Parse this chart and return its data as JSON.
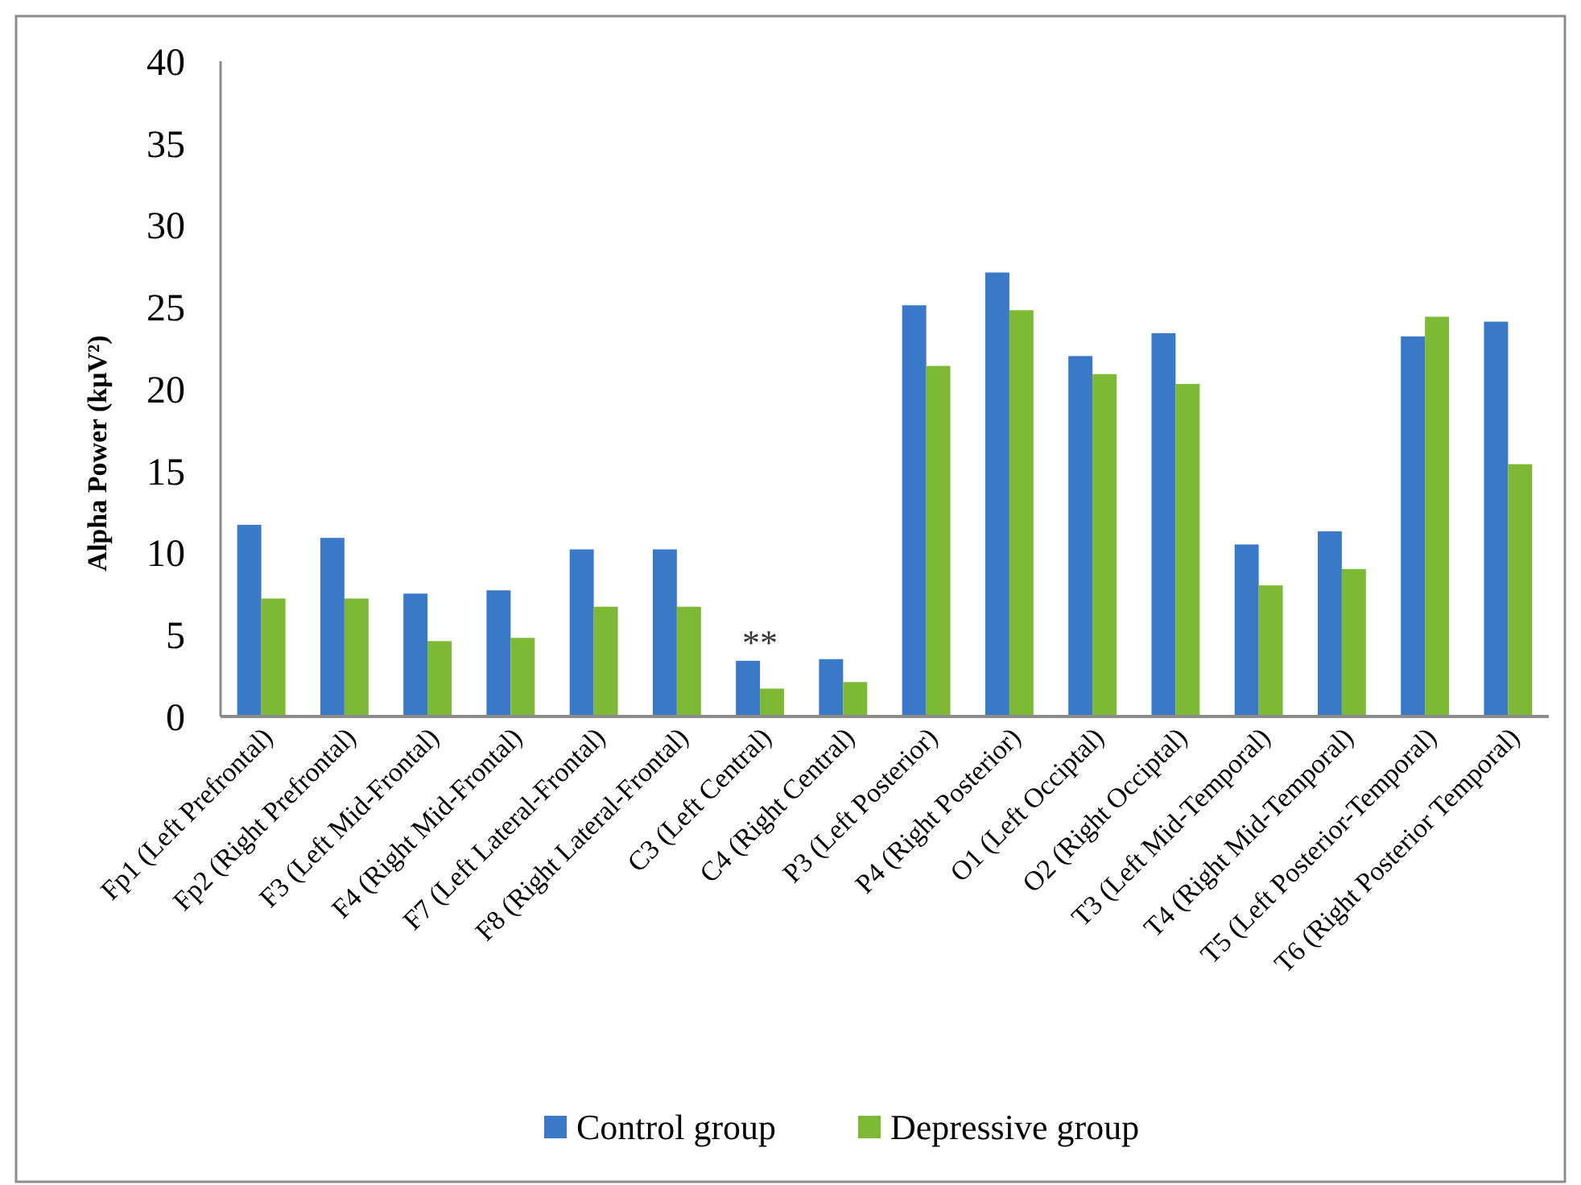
{
  "chart_data": {
    "type": "bar",
    "ylabel": "Alpha Power (kμV²)",
    "categories": [
      "Fp1 (Left Prefrontal)",
      "Fp2 (Right Prefrontal)",
      "F3 (Left Mid-Frontal)",
      "F4 (Right Mid-Frontal)",
      "F7 (Left Lateral-Frontal)",
      "F8 (Right Lateral-Frontal)",
      "C3 (Left Central)",
      "C4 (Right Central)",
      "P3 (Left Posterior)",
      "P4 (Right Posterior)",
      "O1 (Left Occiptal)",
      "O2 (Right Occiptal)",
      "T3 (Left Mid-Temporal)",
      "T4 (Right Mid-Temporal)",
      "T5 (Left Posterior-Temporal)",
      "T6 (Right Posterior Temporal)"
    ],
    "series": [
      {
        "name": "Control group",
        "color": "#3a78c8",
        "values": [
          11.7,
          10.9,
          7.5,
          7.7,
          10.2,
          10.2,
          3.4,
          3.5,
          25.1,
          27.1,
          22.0,
          23.4,
          10.5,
          11.3,
          23.2,
          24.1
        ]
      },
      {
        "name": "Depressive group",
        "color": "#7db935",
        "values": [
          7.2,
          7.2,
          4.6,
          4.8,
          6.7,
          6.7,
          1.7,
          2.1,
          21.4,
          24.8,
          20.9,
          20.3,
          8.0,
          9.0,
          24.4,
          15.4
        ]
      }
    ],
    "ylim": [
      0,
      40
    ],
    "yticks": [
      0,
      5,
      10,
      15,
      20,
      25,
      30,
      35,
      40
    ],
    "grid": false,
    "legend": "bottom",
    "annotations": [
      {
        "text": "**",
        "x": "C3 (Left Central)",
        "y": 3.4
      }
    ]
  }
}
